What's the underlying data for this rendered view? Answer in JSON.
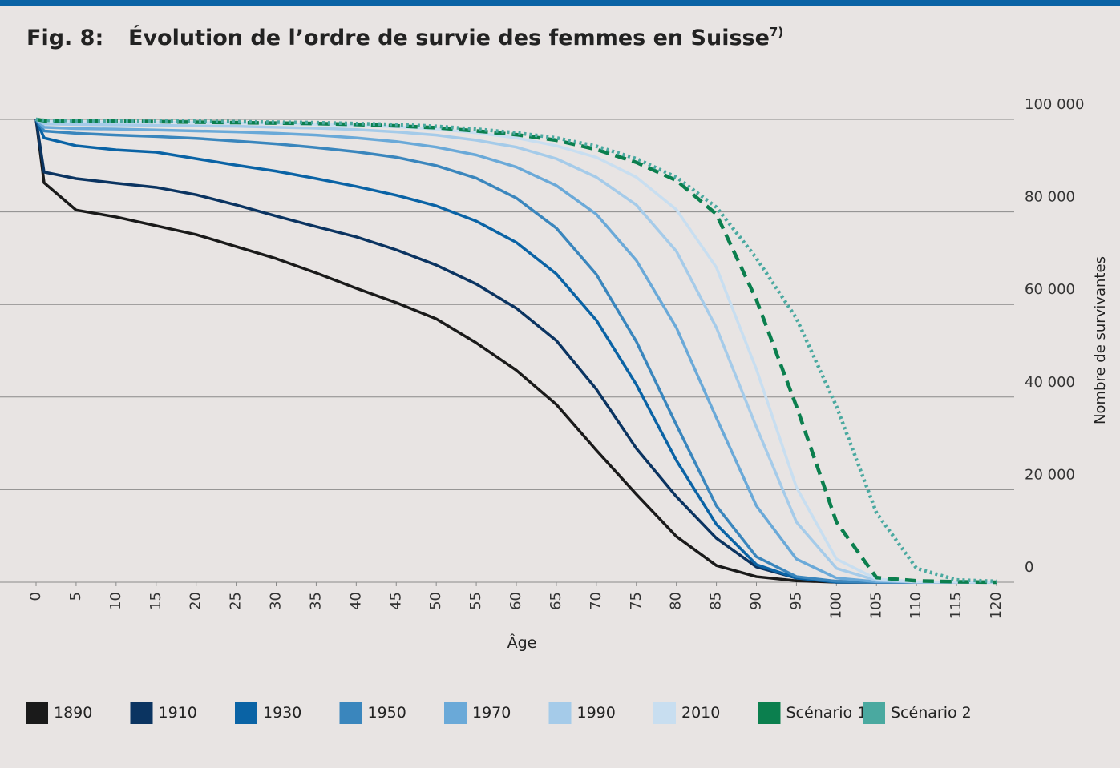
{
  "chart_data": {
    "type": "line",
    "figure_label": "Fig. 8:",
    "title": "Évolution de l’ordre de survie des femmes en Suisse",
    "title_note": "7)",
    "x_label": "Âge",
    "y_label": "Nombre de survivantes",
    "x": [
      0,
      1,
      5,
      10,
      15,
      20,
      25,
      30,
      35,
      40,
      45,
      50,
      55,
      60,
      65,
      70,
      75,
      80,
      85,
      90,
      95,
      100,
      105,
      110,
      115,
      120
    ],
    "xlim": [
      0,
      120
    ],
    "xticks": [
      0,
      5,
      10,
      15,
      20,
      25,
      30,
      35,
      40,
      45,
      50,
      55,
      60,
      65,
      70,
      75,
      80,
      85,
      90,
      95,
      100,
      105,
      110,
      115,
      120
    ],
    "ylim": [
      0,
      100000
    ],
    "yticks": [
      0,
      {
        "value": 20000,
        "label": "20 000"
      },
      {
        "value": 40000,
        "label": "40 000"
      },
      {
        "value": 60000,
        "label": "60 000"
      },
      {
        "value": 80000,
        "label": "80 000"
      },
      {
        "value": 100000,
        "label": "100 000"
      }
    ],
    "grid": true,
    "legend": "bottom",
    "series": [
      {
        "name": "1890",
        "color": "#1a1a1a",
        "style": "solid",
        "values": [
          100000,
          86300,
          80400,
          78900,
          77000,
          75100,
          72500,
          69900,
          66800,
          63500,
          60400,
          56900,
          51700,
          45800,
          38400,
          28500,
          19000,
          9900,
          3600,
          1200,
          300,
          0,
          0,
          0,
          0,
          0
        ]
      },
      {
        "name": "1910",
        "color": "#0b3461",
        "style": "solid",
        "values": [
          100000,
          88600,
          87200,
          86200,
          85300,
          83700,
          81500,
          79100,
          76800,
          74600,
          71800,
          68500,
          64400,
          59200,
          52200,
          41700,
          28900,
          18500,
          9500,
          3300,
          900,
          200,
          0,
          0,
          0,
          0
        ]
      },
      {
        "name": "1930",
        "color": "#0a63a5",
        "style": "solid",
        "values": [
          100000,
          96000,
          94300,
          93400,
          92900,
          91500,
          90100,
          88800,
          87200,
          85500,
          83600,
          81300,
          78000,
          73400,
          66600,
          56600,
          42700,
          26300,
          12500,
          3800,
          900,
          0,
          0,
          0,
          0,
          0
        ]
      },
      {
        "name": "1950",
        "color": "#3a86bd",
        "style": "solid",
        "values": [
          100000,
          97500,
          97000,
          96600,
          96300,
          95900,
          95300,
          94700,
          93900,
          93000,
          91800,
          90000,
          87300,
          83000,
          76500,
          66500,
          52000,
          34000,
          16500,
          5500,
          1200,
          200,
          0,
          0,
          0,
          0
        ]
      },
      {
        "name": "1970",
        "color": "#6aa9d8",
        "style": "solid",
        "values": [
          100000,
          98300,
          98000,
          97900,
          97700,
          97500,
          97300,
          97000,
          96600,
          96000,
          95200,
          94000,
          92300,
          89700,
          85700,
          79500,
          69500,
          55000,
          35500,
          16500,
          5000,
          900,
          100,
          0,
          0,
          0
        ]
      },
      {
        "name": "1990",
        "color": "#a5cbe9",
        "style": "solid",
        "values": [
          100000,
          99000,
          98900,
          98800,
          98700,
          98600,
          98500,
          98300,
          98100,
          97800,
          97300,
          96600,
          95500,
          94000,
          91500,
          87500,
          81500,
          71500,
          55000,
          33500,
          13000,
          3000,
          400,
          0,
          0,
          0
        ]
      },
      {
        "name": "2010",
        "color": "#c8def0",
        "style": "solid",
        "values": [
          100000,
          99600,
          99500,
          99400,
          99400,
          99300,
          99200,
          99100,
          98900,
          98700,
          98400,
          97900,
          97100,
          96000,
          94300,
          91800,
          87500,
          80500,
          68000,
          46000,
          20500,
          5000,
          700,
          100,
          0,
          0
        ]
      },
      {
        "name": "Scénario 1",
        "color": "#0b7f4e",
        "style": "dashed",
        "values": [
          100000,
          99700,
          99600,
          99600,
          99500,
          99400,
          99300,
          99200,
          99100,
          98900,
          98600,
          98200,
          97500,
          96700,
          95500,
          93500,
          90700,
          86800,
          79500,
          61000,
          38000,
          13000,
          1000,
          300,
          100,
          0
        ]
      },
      {
        "name": "Scénario 2",
        "color": "#4aa9a0",
        "style": "dotted",
        "values": [
          100000,
          99800,
          99700,
          99700,
          99600,
          99600,
          99500,
          99400,
          99300,
          99100,
          98900,
          98500,
          97900,
          97100,
          96000,
          94200,
          91500,
          87500,
          81000,
          70000,
          57000,
          38000,
          15000,
          3000,
          500,
          200
        ]
      }
    ]
  }
}
